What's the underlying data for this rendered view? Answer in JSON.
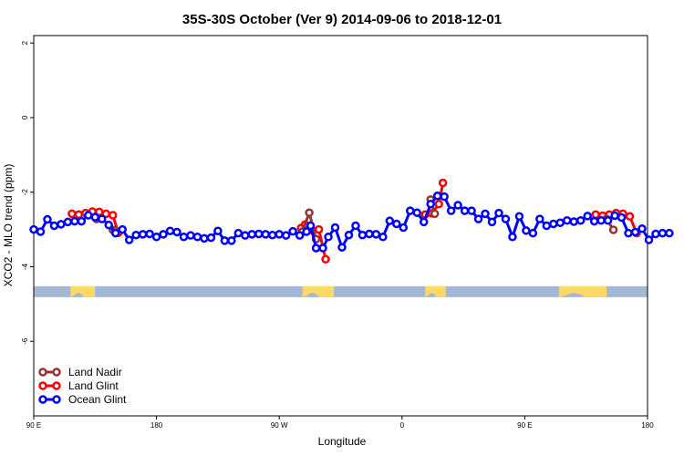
{
  "chart_data": {
    "type": "line",
    "title": "35S-30S October (Ver 9)   2014-09-06 to 2018-12-01",
    "xlabel": "Longitude",
    "ylabel": "XCO2 - MLO trend (ppm)",
    "xlim": [
      90,
      540
    ],
    "ylim": [
      -8,
      2.2
    ],
    "x_ticks": [
      {
        "value": 90,
        "label": "90 E"
      },
      {
        "value": 180,
        "label": "180"
      },
      {
        "value": 270,
        "label": "90 W"
      },
      {
        "value": 360,
        "label": "0"
      },
      {
        "value": 450,
        "label": "90 E"
      },
      {
        "value": 540,
        "label": "180"
      }
    ],
    "y_ticks": [
      {
        "value": 2,
        "label": "2"
      },
      {
        "value": 0,
        "label": "0"
      },
      {
        "value": -2,
        "label": "-2"
      },
      {
        "value": -4,
        "label": "-4"
      },
      {
        "value": -6,
        "label": "-6"
      }
    ],
    "legend_position": "bottom-left",
    "colors": {
      "land_nadir": "#993333",
      "land_glint": "#ff0000",
      "ocean_glint": "#0000ff",
      "ocean_band": "#a3b8d6",
      "land_band": "#ffd866"
    },
    "latitude_band": {
      "y_center": -4.67,
      "land_segments": [
        [
          117,
          135
        ],
        [
          287,
          310
        ],
        [
          377,
          392
        ],
        [
          475,
          510
        ]
      ]
    },
    "series": [
      {
        "name": "Land Nadir",
        "color": "#993333",
        "segments": [
          [
            [
              136,
              -2.72
            ]
          ],
          [
            [
              148,
              -3.01
            ],
            [
              150,
              -3.03
            ]
          ],
          [
            [
              287,
              -3.06
            ],
            [
              292,
              -2.55
            ],
            [
              297,
              -3.26
            ]
          ],
          [
            [
              381,
              -2.2
            ],
            [
              384,
              -2.58
            ]
          ],
          [
            [
              510,
              -2.72
            ],
            [
              515,
              -3.01
            ]
          ]
        ]
      },
      {
        "name": "Land Glint",
        "color": "#ff0000",
        "segments": [
          [
            [
              118,
              -2.58
            ],
            [
              123,
              -2.6
            ],
            [
              128,
              -2.56
            ],
            [
              133,
              -2.52
            ],
            [
              138,
              -2.53
            ],
            [
              143,
              -2.58
            ],
            [
              148,
              -2.62
            ],
            [
              152,
              -3.09
            ]
          ],
          [
            [
              286,
              -2.96
            ],
            [
              289,
              -2.87
            ],
            [
              294,
              -3.02
            ],
            [
              299,
              -3.0
            ],
            [
              304,
              -3.8
            ]
          ],
          [
            [
              377,
              -2.6
            ],
            [
              382,
              -2.57
            ],
            [
              387,
              -2.32
            ],
            [
              390,
              -1.75
            ]
          ],
          [
            [
              502,
              -2.6
            ],
            [
              507,
              -2.63
            ],
            [
              512,
              -2.6
            ],
            [
              517,
              -2.56
            ],
            [
              522,
              -2.58
            ],
            [
              527,
              -2.65
            ],
            [
              532,
              -3.1
            ]
          ]
        ]
      },
      {
        "name": "Ocean Glint",
        "color": "#0000ff",
        "segments": [
          [
            [
              90,
              -3.0
            ],
            [
              95,
              -3.06
            ],
            [
              100,
              -2.73
            ],
            [
              105,
              -2.9
            ],
            [
              110,
              -2.86
            ],
            [
              115,
              -2.8
            ],
            [
              120,
              -2.78
            ],
            [
              125,
              -2.78
            ],
            [
              130,
              -2.62
            ],
            [
              135,
              -2.67
            ],
            [
              140,
              -2.72
            ],
            [
              145,
              -2.88
            ],
            [
              150,
              -3.1
            ],
            [
              155,
              -3.0
            ],
            [
              160,
              -3.28
            ],
            [
              165,
              -3.15
            ],
            [
              170,
              -3.13
            ],
            [
              175,
              -3.12
            ],
            [
              180,
              -3.2
            ],
            [
              185,
              -3.13
            ],
            [
              190,
              -3.04
            ],
            [
              195,
              -3.07
            ],
            [
              200,
              -3.2
            ],
            [
              205,
              -3.16
            ],
            [
              210,
              -3.2
            ],
            [
              215,
              -3.24
            ],
            [
              220,
              -3.22
            ],
            [
              225,
              -3.04
            ],
            [
              230,
              -3.3
            ],
            [
              235,
              -3.3
            ],
            [
              240,
              -3.1
            ],
            [
              245,
              -3.16
            ],
            [
              250,
              -3.13
            ],
            [
              255,
              -3.12
            ],
            [
              260,
              -3.13
            ],
            [
              265,
              -3.15
            ],
            [
              270,
              -3.13
            ],
            [
              275,
              -3.16
            ],
            [
              280,
              -3.05
            ],
            [
              285,
              -3.16
            ],
            [
              290,
              -3.06
            ],
            [
              293,
              -2.9
            ],
            [
              297,
              -3.5
            ],
            [
              302,
              -3.5
            ],
            [
              306,
              -3.2
            ],
            [
              311,
              -2.95
            ],
            [
              316,
              -3.48
            ],
            [
              321,
              -3.15
            ],
            [
              326,
              -2.9
            ],
            [
              331,
              -3.15
            ],
            [
              336,
              -3.12
            ],
            [
              341,
              -3.13
            ],
            [
              346,
              -3.2
            ],
            [
              351,
              -2.77
            ],
            [
              356,
              -2.85
            ],
            [
              361,
              -2.95
            ],
            [
              366,
              -2.5
            ],
            [
              371,
              -2.55
            ],
            [
              376,
              -2.8
            ],
            [
              381,
              -2.32
            ],
            [
              386,
              -2.1
            ],
            [
              391,
              -2.12
            ],
            [
              396,
              -2.5
            ],
            [
              401,
              -2.35
            ],
            [
              406,
              -2.5
            ],
            [
              411,
              -2.5
            ],
            [
              416,
              -2.72
            ],
            [
              421,
              -2.58
            ],
            [
              426,
              -2.8
            ],
            [
              431,
              -2.56
            ],
            [
              436,
              -2.72
            ],
            [
              441,
              -3.2
            ],
            [
              446,
              -2.65
            ],
            [
              451,
              -3.03
            ],
            [
              456,
              -3.1
            ],
            [
              461,
              -2.72
            ],
            [
              466,
              -2.9
            ],
            [
              471,
              -2.85
            ],
            [
              476,
              -2.82
            ],
            [
              481,
              -2.76
            ],
            [
              486,
              -2.79
            ],
            [
              491,
              -2.76
            ],
            [
              496,
              -2.64
            ],
            [
              501,
              -2.78
            ],
            [
              506,
              -2.76
            ],
            [
              511,
              -2.76
            ],
            [
              516,
              -2.63
            ],
            [
              521,
              -2.68
            ],
            [
              526,
              -3.1
            ],
            [
              531,
              -3.07
            ],
            [
              536,
              -2.98
            ],
            [
              541,
              -3.28
            ],
            [
              546,
              -3.12
            ],
            [
              551,
              -3.1
            ],
            [
              556,
              -3.1
            ]
          ]
        ]
      }
    ]
  }
}
